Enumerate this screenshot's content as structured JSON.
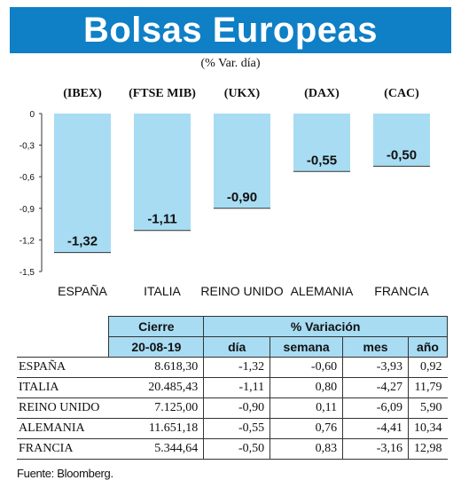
{
  "header": {
    "title": "Bolsas Europeas",
    "subtitle": "(% Var. día)"
  },
  "colors": {
    "title_bg": "#0f7fc6",
    "bar_fill": "#a8dcf3",
    "header_fill": "#a8dcf3"
  },
  "chart_data": {
    "type": "bar",
    "categories": [
      "ESPAÑA",
      "ITALIA",
      "REINO UNIDO",
      "ALEMANIA",
      "FRANCIA"
    ],
    "index_codes": [
      "(IBEX)",
      "(FTSE MIB)",
      "(UKX)",
      "(DAX)",
      "(CAC)"
    ],
    "values": [
      -1.32,
      -1.11,
      -0.9,
      -0.55,
      -0.5
    ],
    "value_labels": [
      "-1,32",
      "-1,11",
      "-0,90",
      "-0,55",
      "-0,50"
    ],
    "y_ticks": [
      "0",
      "-0,3",
      "-0,6",
      "-0,9",
      "-1,2",
      "-1,5"
    ],
    "y_tick_values": [
      0,
      -0.3,
      -0.6,
      -0.9,
      -1.2,
      -1.5
    ],
    "ylim": [
      -1.5,
      0
    ],
    "grid": false
  },
  "table": {
    "header_cierre": "Cierre",
    "header_variacion": "% Variación",
    "date": "20-08-19",
    "columns": [
      "día",
      "semana",
      "mes",
      "año"
    ],
    "rows": [
      {
        "country": "ESPAÑA",
        "cierre": "8.618,30",
        "dia": "-1,32",
        "semana": "-0,60",
        "mes": "-3,93",
        "ano": "0,92"
      },
      {
        "country": "ITALIA",
        "cierre": "20.485,43",
        "dia": "-1,11",
        "semana": "0,80",
        "mes": "-4,27",
        "ano": "11,79"
      },
      {
        "country": "REINO UNIDO",
        "cierre": "7.125,00",
        "dia": "-0,90",
        "semana": "0,11",
        "mes": "-6,09",
        "ano": "5,90"
      },
      {
        "country": "ALEMANIA",
        "cierre": "11.651,18",
        "dia": "-0,55",
        "semana": "0,76",
        "mes": "-4,41",
        "ano": "10,34"
      },
      {
        "country": "FRANCIA",
        "cierre": "5.344,64",
        "dia": "-0,50",
        "semana": "0,83",
        "mes": "-3,16",
        "ano": "12,98"
      }
    ]
  },
  "footer": {
    "source": "Fuente: Bloomberg."
  }
}
